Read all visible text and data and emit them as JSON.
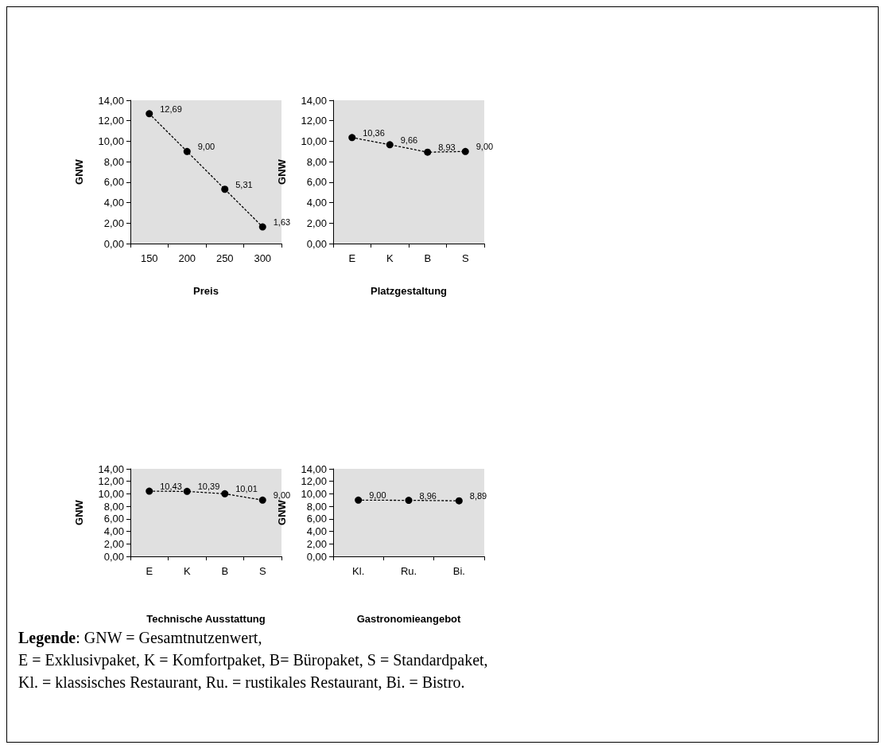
{
  "chart_data": [
    {
      "type": "line",
      "xlabel": "Preis",
      "ylabel": "GNW",
      "categories": [
        "150",
        "200",
        "250",
        "300"
      ],
      "series": [
        {
          "color": "#000000",
          "values": [
            12.69,
            9.0,
            5.31,
            1.63
          ],
          "value_labels": [
            "12,69",
            "9,00",
            "5,31",
            "1,63"
          ]
        }
      ],
      "ylim": [
        0,
        14
      ],
      "yticks": [
        {
          "value": 0,
          "label": "0,00"
        },
        {
          "value": 2,
          "label": "2,00"
        },
        {
          "value": 4,
          "label": "4,00"
        },
        {
          "value": 6,
          "label": "6,00"
        },
        {
          "value": 8,
          "label": "8,00"
        },
        {
          "value": 10,
          "label": "10,00"
        },
        {
          "value": 12,
          "label": "12,00"
        },
        {
          "value": 14,
          "label": "14,00"
        }
      ],
      "marker": "circle",
      "line_style": "dotted",
      "grid": false
    },
    {
      "type": "line",
      "xlabel": "Platzgestaltung",
      "ylabel": "GNW",
      "categories": [
        "E",
        "K",
        "B",
        "S"
      ],
      "series": [
        {
          "color": "#000000",
          "values": [
            10.36,
            9.66,
            8.93,
            9.0
          ],
          "value_labels": [
            "10,36",
            "9,66",
            "8,93",
            "9,00"
          ]
        }
      ],
      "ylim": [
        0,
        14
      ],
      "yticks": [
        {
          "value": 0,
          "label": "0,00"
        },
        {
          "value": 2,
          "label": "2,00"
        },
        {
          "value": 4,
          "label": "4,00"
        },
        {
          "value": 6,
          "label": "6,00"
        },
        {
          "value": 8,
          "label": "8,00"
        },
        {
          "value": 10,
          "label": "10,00"
        },
        {
          "value": 12,
          "label": "12,00"
        },
        {
          "value": 14,
          "label": "14,00"
        }
      ],
      "marker": "circle",
      "line_style": "dotted",
      "grid": false
    },
    {
      "type": "line",
      "xlabel": "Technische Ausstattung",
      "ylabel": "GNW",
      "categories": [
        "E",
        "K",
        "B",
        "S"
      ],
      "series": [
        {
          "color": "#000000",
          "values": [
            10.43,
            10.39,
            10.01,
            9.0
          ],
          "value_labels": [
            "10,43",
            "10,39",
            "10,01",
            "9,00"
          ]
        }
      ],
      "ylim": [
        0,
        14
      ],
      "yticks": [
        {
          "value": 0,
          "label": "0,00"
        },
        {
          "value": 2,
          "label": "2,00"
        },
        {
          "value": 4,
          "label": "4,00"
        },
        {
          "value": 6,
          "label": "6,00"
        },
        {
          "value": 8,
          "label": "8,00"
        },
        {
          "value": 10,
          "label": "10,00"
        },
        {
          "value": 12,
          "label": "12,00"
        },
        {
          "value": 14,
          "label": "14,00"
        }
      ],
      "marker": "circle",
      "line_style": "dotted",
      "grid": false
    },
    {
      "type": "line",
      "xlabel": "Gastronomieangebot",
      "ylabel": "GNW",
      "categories": [
        "Kl.",
        "Ru.",
        "Bi."
      ],
      "series": [
        {
          "color": "#000000",
          "values": [
            9.0,
            8.96,
            8.89
          ],
          "value_labels": [
            "9,00",
            "8,96",
            "8,89"
          ]
        }
      ],
      "ylim": [
        0,
        14
      ],
      "yticks": [
        {
          "value": 0,
          "label": "0,00"
        },
        {
          "value": 2,
          "label": "2,00"
        },
        {
          "value": 4,
          "label": "4,00"
        },
        {
          "value": 6,
          "label": "6,00"
        },
        {
          "value": 8,
          "label": "8,00"
        },
        {
          "value": 10,
          "label": "10,00"
        },
        {
          "value": 12,
          "label": "12,00"
        },
        {
          "value": 14,
          "label": "14,00"
        }
      ],
      "marker": "circle",
      "line_style": "dotted",
      "grid": false,
      "annotations": [
        "Legende: GNW = Gesamtnutzenwert,",
        "E = Exklusivpaket, K = Komfortpaket, B= Büropaket, S = Standardpaket,",
        "Kl. = klassisches Restaurant, Ru. = rustikales Restaurant, Bi. = Bistro."
      ]
    }
  ]
}
